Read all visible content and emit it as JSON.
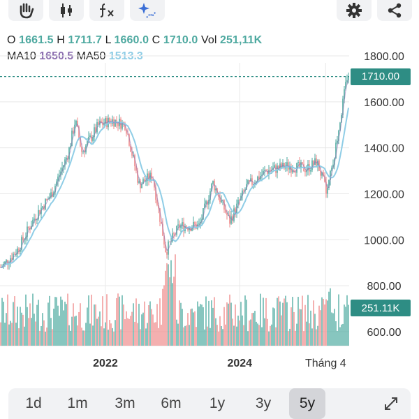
{
  "toolbar": {
    "tools": [
      {
        "name": "hand-tool",
        "icon": "hand-icon"
      },
      {
        "name": "candlestick-tool",
        "icon": "candlestick-icon"
      },
      {
        "name": "indicator-tool",
        "icon": "function-icon"
      },
      {
        "name": "drawing-tool",
        "icon": "sparkle-draw-icon"
      }
    ],
    "settings_icon": "gear-icon",
    "share_icon": "share-icon"
  },
  "ohlc": {
    "o_label": "O",
    "o_value": "1661.5",
    "h_label": "H",
    "h_value": "1711.7",
    "l_label": "L",
    "l_value": "1660.0",
    "c_label": "C",
    "c_value": "1710.0",
    "vol_label": "Vol",
    "vol_value": "251,11K"
  },
  "ma": {
    "ma10_label": "MA10",
    "ma10_value": "1650.5",
    "ma50_label": "MA50",
    "ma50_value": "1513.3"
  },
  "price_tag": "1710.00",
  "volume_tag": "251.11K",
  "ranges": [
    "1d",
    "1m",
    "3m",
    "6m",
    "1y",
    "3y",
    "5y"
  ],
  "active_range": "5y",
  "colors": {
    "up": "#4ea9a0",
    "down": "#ef8a8a",
    "ma10": "#8c6fb0",
    "ma50": "#8fcde6",
    "price_tag": "#2e8d84",
    "grid": "#e8e8e8"
  },
  "chart_data": {
    "type": "candlestick",
    "y_axis_ticks": [
      "1800.00",
      "1600.00",
      "1400.00",
      "1200.00",
      "1000.00",
      "800.00",
      "600.00"
    ],
    "x_axis_ticks": [
      "2022",
      "2024",
      "Tháng 4"
    ],
    "ylim": [
      600,
      1800
    ],
    "grid": true,
    "last_close": 1710.0,
    "approx_close_path": [
      {
        "x": 2020.45,
        "y": 880
      },
      {
        "x": 2020.7,
        "y": 960
      },
      {
        "x": 2020.95,
        "y": 1100
      },
      {
        "x": 2021.2,
        "y": 1200
      },
      {
        "x": 2021.45,
        "y": 1380
      },
      {
        "x": 2021.55,
        "y": 1520
      },
      {
        "x": 2021.65,
        "y": 1380
      },
      {
        "x": 2021.9,
        "y": 1500
      },
      {
        "x": 2022.1,
        "y": 1520
      },
      {
        "x": 2022.3,
        "y": 1500
      },
      {
        "x": 2022.5,
        "y": 1240
      },
      {
        "x": 2022.7,
        "y": 1280
      },
      {
        "x": 2022.9,
        "y": 950
      },
      {
        "x": 2023.1,
        "y": 1060
      },
      {
        "x": 2023.4,
        "y": 1060
      },
      {
        "x": 2023.6,
        "y": 1250
      },
      {
        "x": 2023.85,
        "y": 1080
      },
      {
        "x": 2024.1,
        "y": 1230
      },
      {
        "x": 2024.4,
        "y": 1300
      },
      {
        "x": 2024.7,
        "y": 1320
      },
      {
        "x": 2025.0,
        "y": 1310
      },
      {
        "x": 2025.15,
        "y": 1340
      },
      {
        "x": 2025.3,
        "y": 1200
      },
      {
        "x": 2025.45,
        "y": 1440
      },
      {
        "x": 2025.6,
        "y": 1710
      }
    ]
  }
}
